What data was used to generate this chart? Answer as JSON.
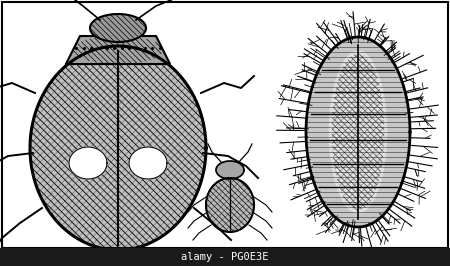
{
  "background_color": "#ffffff",
  "fig_width": 4.5,
  "fig_height": 2.66,
  "dpi": 100,
  "watermark_text": "alamy - PG0E3E",
  "watermark_bg": "#1a1a1a",
  "watermark_text_color": "#ffffff",
  "watermark_fontsize": 7.5
}
